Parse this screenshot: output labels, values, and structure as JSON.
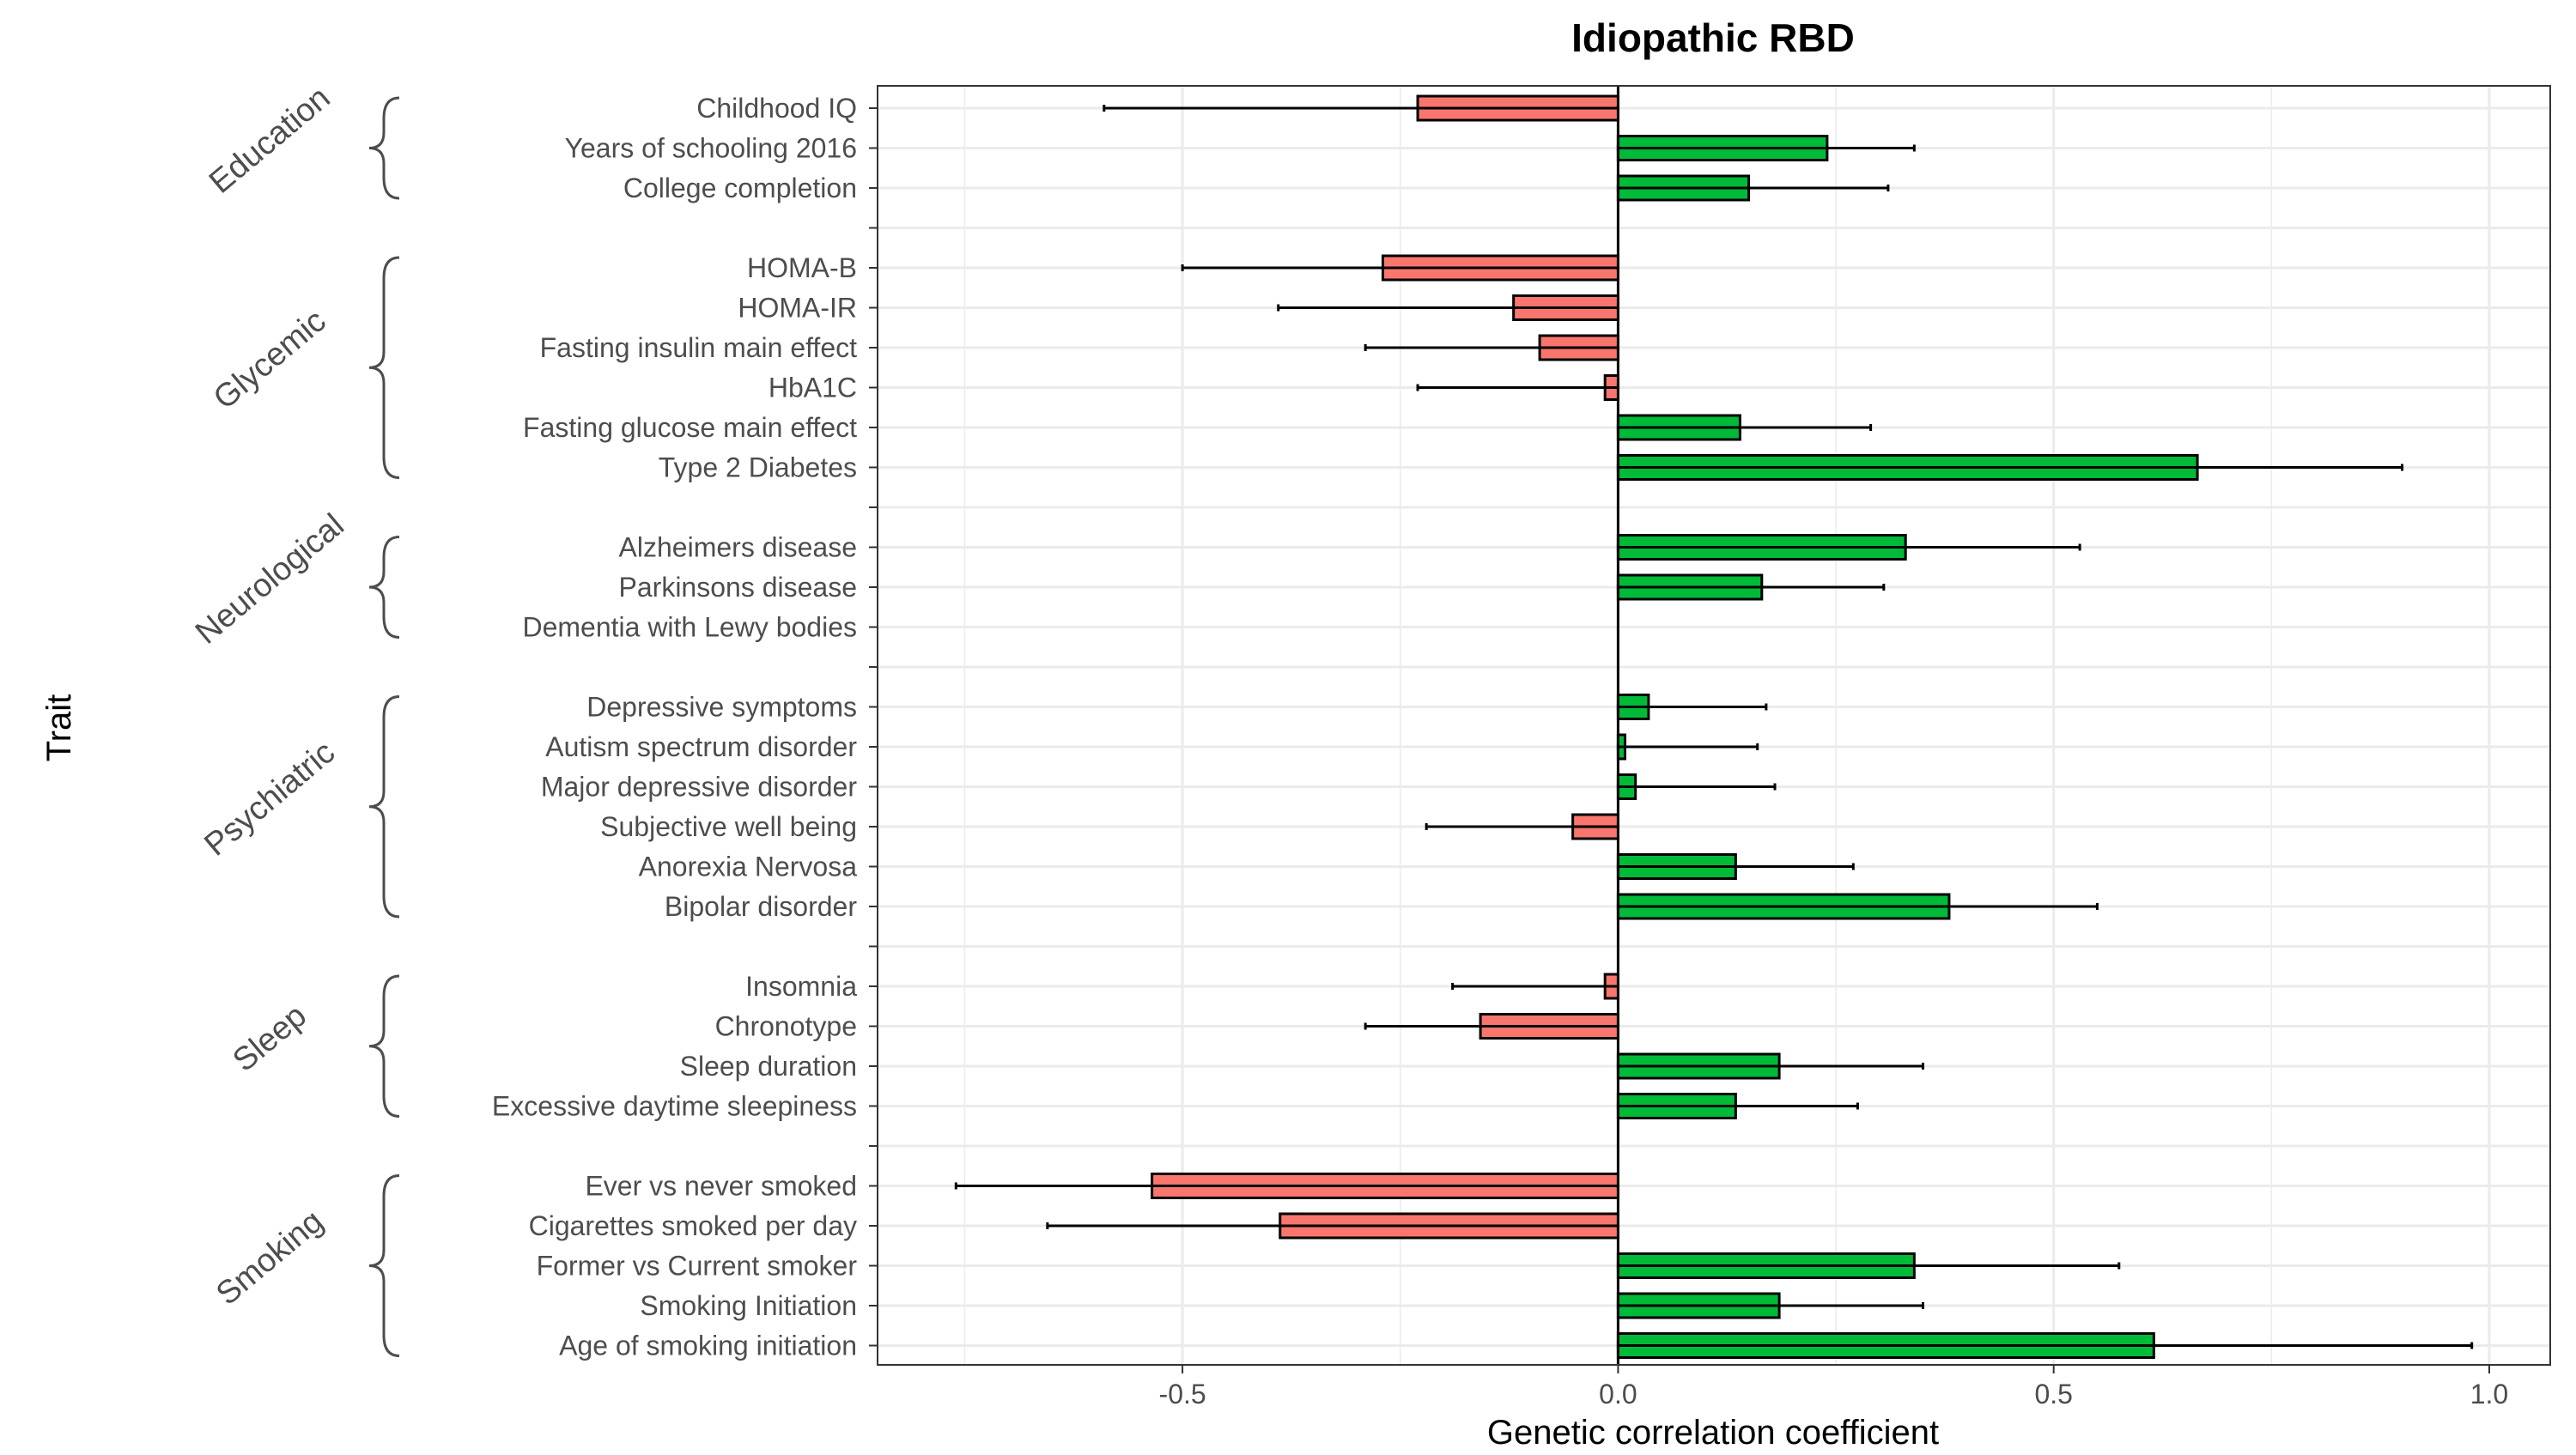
{
  "chart_data": {
    "type": "bar",
    "orientation": "horizontal",
    "title": "Idiopathic RBD",
    "xlabel": "Genetic correlation coefficient",
    "ylabel": "Trait",
    "xlim": [
      -0.85,
      1.07
    ],
    "x_ticks": [
      -0.5,
      0.0,
      0.5,
      1.0
    ],
    "x_tick_labels": [
      "-0.5",
      "0.0",
      "0.5",
      "1.0"
    ],
    "grid": true,
    "colors": {
      "positive": "#00ba38",
      "negative": "#f8766d",
      "error_bar": "#000000"
    },
    "groups": [
      {
        "name": "Education",
        "traits": [
          {
            "label": "Childhood IQ",
            "value": -0.23,
            "lower": -0.59,
            "upper": 0.0
          },
          {
            "label": "Years of schooling 2016",
            "value": 0.24,
            "lower": 0.0,
            "upper": 0.34
          },
          {
            "label": "College completion",
            "value": 0.15,
            "lower": 0.0,
            "upper": 0.31
          }
        ]
      },
      {
        "name": "Glycemic",
        "traits": [
          {
            "label": "HOMA-B",
            "value": -0.27,
            "lower": -0.5,
            "upper": 0.0
          },
          {
            "label": "HOMA-IR",
            "value": -0.12,
            "lower": -0.39,
            "upper": 0.0
          },
          {
            "label": "Fasting insulin main effect",
            "value": -0.09,
            "lower": -0.29,
            "upper": 0.0
          },
          {
            "label": "HbA1C",
            "value": -0.015,
            "lower": -0.23,
            "upper": 0.0
          },
          {
            "label": "Fasting glucose main effect",
            "value": 0.14,
            "lower": 0.0,
            "upper": 0.29
          },
          {
            "label": "Type 2 Diabetes",
            "value": 0.665,
            "lower": 0.0,
            "upper": 0.9
          }
        ]
      },
      {
        "name": "Neurological",
        "traits": [
          {
            "label": "Alzheimers disease",
            "value": 0.33,
            "lower": 0.0,
            "upper": 0.53
          },
          {
            "label": "Parkinsons disease",
            "value": 0.165,
            "lower": 0.0,
            "upper": 0.305
          },
          {
            "label": "Dementia with Lewy bodies",
            "value": null,
            "lower": null,
            "upper": null
          }
        ]
      },
      {
        "name": "Psychiatric",
        "traits": [
          {
            "label": "Depressive symptoms",
            "value": 0.035,
            "lower": 0.0,
            "upper": 0.17
          },
          {
            "label": "Autism spectrum disorder",
            "value": 0.008,
            "lower": 0.0,
            "upper": 0.16
          },
          {
            "label": "Major depressive disorder",
            "value": 0.02,
            "lower": 0.0,
            "upper": 0.18
          },
          {
            "label": "Subjective well being",
            "value": -0.052,
            "lower": -0.22,
            "upper": 0.0
          },
          {
            "label": "Anorexia Nervosa",
            "value": 0.135,
            "lower": 0.0,
            "upper": 0.27
          },
          {
            "label": "Bipolar disorder",
            "value": 0.38,
            "lower": 0.0,
            "upper": 0.55
          }
        ]
      },
      {
        "name": "Sleep",
        "traits": [
          {
            "label": "Insomnia",
            "value": -0.015,
            "lower": -0.19,
            "upper": 0.0
          },
          {
            "label": "Chronotype",
            "value": -0.158,
            "lower": -0.29,
            "upper": 0.0
          },
          {
            "label": "Sleep duration",
            "value": 0.185,
            "lower": 0.0,
            "upper": 0.35
          },
          {
            "label": "Excessive daytime sleepiness",
            "value": 0.135,
            "lower": 0.0,
            "upper": 0.275
          }
        ]
      },
      {
        "name": "Smoking",
        "traits": [
          {
            "label": "Ever vs never smoked",
            "value": -0.535,
            "lower": -0.76,
            "upper": 0.0
          },
          {
            "label": "Cigarettes smoked per day",
            "value": -0.388,
            "lower": -0.655,
            "upper": 0.0
          },
          {
            "label": "Former vs Current smoker",
            "value": 0.34,
            "lower": 0.0,
            "upper": 0.575
          },
          {
            "label": "Smoking Initiation",
            "value": 0.185,
            "lower": 0.0,
            "upper": 0.35
          },
          {
            "label": "Age of smoking initiation",
            "value": 0.615,
            "lower": 0.0,
            "upper": 0.98
          }
        ]
      }
    ]
  }
}
